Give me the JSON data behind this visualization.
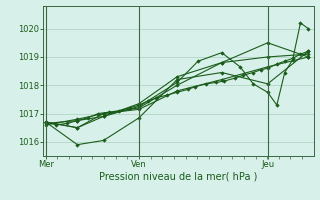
{
  "xlabel": "Pression niveau de la mer( hPa )",
  "bg_color": "#d8f0ea",
  "grid_color": "#b8d8cc",
  "line_color": "#1a5c1a",
  "marker_color": "#1a5c1a",
  "ylim": [
    1015.5,
    1020.8
  ],
  "yticks": [
    1016,
    1017,
    1018,
    1019,
    1020
  ],
  "day_positions": [
    0.0,
    0.355,
    0.845
  ],
  "day_labels": [
    "Mer",
    "Ven",
    "Jeu"
  ],
  "series": [
    [
      0.0,
      1016.7,
      0.04,
      1016.6,
      0.08,
      1016.65,
      0.12,
      1016.75,
      0.16,
      1016.85,
      0.2,
      1017.0,
      0.24,
      1017.05,
      0.28,
      1017.1,
      0.32,
      1017.2,
      0.355,
      1017.3,
      0.39,
      1017.45,
      0.42,
      1017.55,
      0.46,
      1017.65,
      0.5,
      1017.75,
      0.54,
      1017.85,
      0.57,
      1017.95,
      0.61,
      1018.05,
      0.65,
      1018.1,
      0.68,
      1018.15,
      0.72,
      1018.25,
      0.75,
      1018.35,
      0.79,
      1018.45,
      0.82,
      1018.55,
      0.845,
      1018.6,
      0.88,
      1018.75,
      0.91,
      1018.85,
      0.94,
      1018.95,
      0.97,
      1019.1,
      1.0,
      1019.2
    ],
    [
      0.0,
      1016.7,
      0.12,
      1016.5,
      0.22,
      1017.0,
      0.355,
      1017.15,
      0.5,
      1017.8,
      0.67,
      1018.2,
      0.845,
      1018.65,
      1.0,
      1019.0
    ],
    [
      0.0,
      1016.7,
      0.12,
      1015.9,
      0.22,
      1016.05,
      0.355,
      1016.85,
      0.5,
      1018.2,
      0.67,
      1018.45,
      0.845,
      1018.05,
      1.0,
      1019.2
    ],
    [
      0.0,
      1016.7,
      0.12,
      1016.5,
      0.22,
      1016.9,
      0.355,
      1017.35,
      0.5,
      1018.3,
      0.67,
      1018.8,
      0.845,
      1019.0,
      1.0,
      1019.1
    ],
    [
      0.0,
      1016.65,
      0.12,
      1016.75,
      0.22,
      1016.9,
      0.355,
      1017.25,
      0.5,
      1018.1,
      0.58,
      1018.85,
      0.67,
      1019.15,
      0.74,
      1018.65,
      0.79,
      1018.05,
      0.845,
      1017.75,
      0.88,
      1017.3,
      0.91,
      1018.45,
      0.94,
      1018.9,
      0.97,
      1020.2,
      1.0,
      1020.0
    ],
    [
      0.0,
      1016.6,
      0.12,
      1016.8,
      0.22,
      1017.0,
      0.355,
      1017.2,
      0.5,
      1018.0,
      0.67,
      1018.8,
      0.845,
      1019.5,
      1.0,
      1019.0
    ]
  ]
}
